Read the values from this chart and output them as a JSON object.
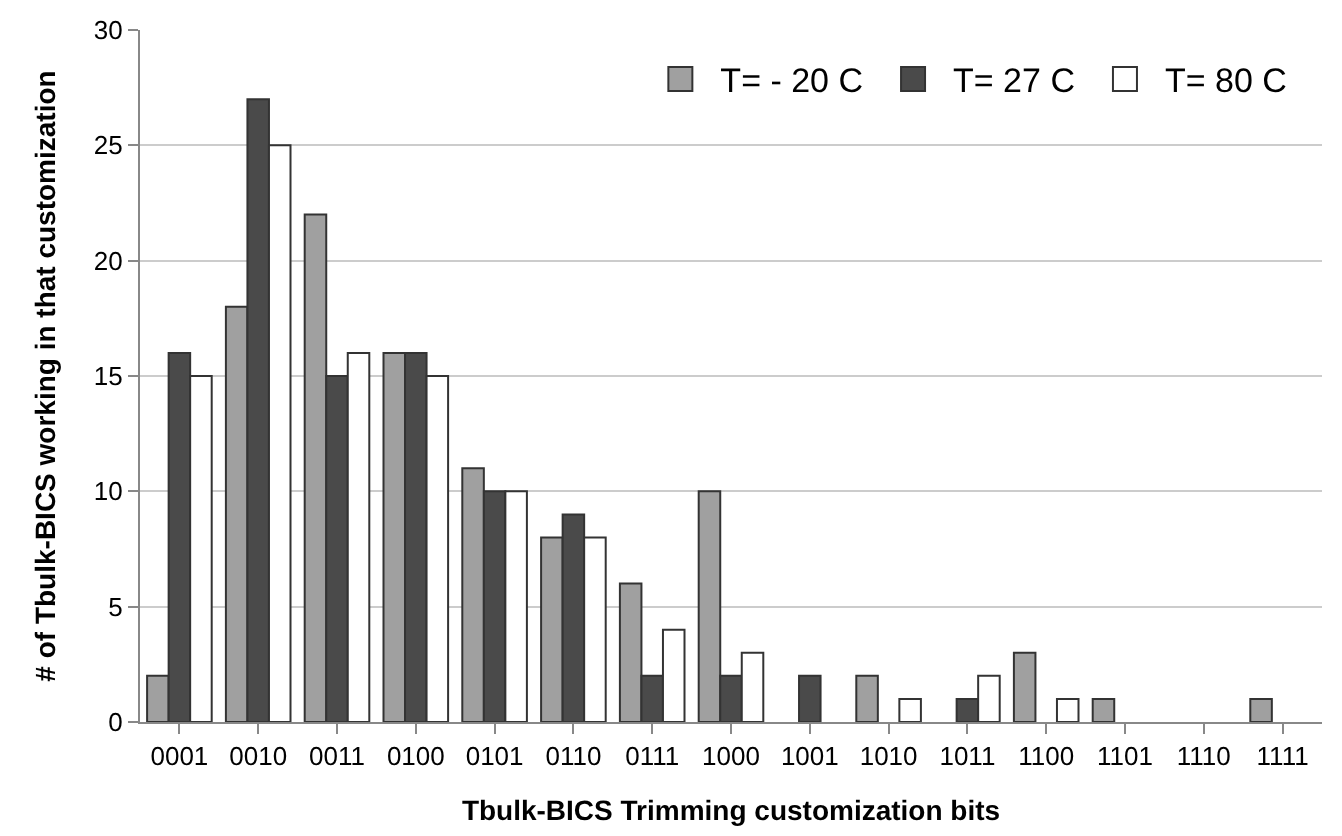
{
  "chart_data": {
    "type": "bar",
    "xlabel": "Tbulk-BICS Trimming customization bits",
    "ylabel": "# of Tbulk-BICS working in that customization",
    "categories": [
      "0001",
      "0010",
      "0011",
      "0100",
      "0101",
      "0110",
      "0111",
      "1000",
      "1001",
      "1010",
      "1011",
      "1100",
      "1101",
      "1110",
      "1111"
    ],
    "series": [
      {
        "name": "T= - 20 C",
        "color": "#a0a0a0",
        "values": [
          2,
          18,
          22,
          16,
          11,
          8,
          6,
          10,
          0,
          2,
          0,
          3,
          1,
          0,
          1
        ]
      },
      {
        "name": "T= 27 C",
        "color": "#4a4a4a",
        "values": [
          16,
          27,
          15,
          16,
          10,
          9,
          2,
          2,
          2,
          0,
          1,
          0,
          0,
          0,
          0
        ]
      },
      {
        "name": "T= 80 C",
        "color": "#ffffff",
        "values": [
          15,
          25,
          16,
          15,
          10,
          8,
          4,
          3,
          0,
          1,
          2,
          1,
          0,
          0,
          0
        ]
      }
    ],
    "ylim": [
      0,
      30
    ],
    "yticks": [
      0,
      5,
      10,
      15,
      20,
      25,
      30
    ],
    "grid": "y",
    "legend": "top right"
  }
}
